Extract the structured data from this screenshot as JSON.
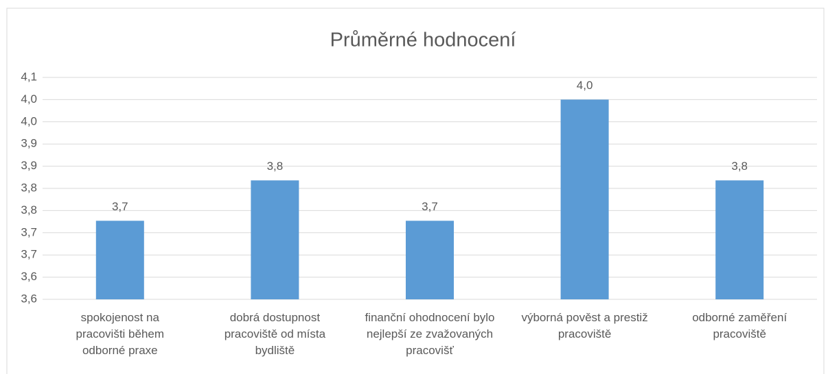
{
  "chart_data": {
    "type": "bar",
    "title": "Průměrné hodnocení",
    "categories": [
      "spokojenost na pracovišti během odborné praxe",
      "dobrá dostupnost pracoviště od místa bydliště",
      "finanční ohodnocení bylo nejlepší ze zvažovaných pracovišť",
      "výborná pověst a prestiž pracoviště",
      "odborné zaměření pracoviště"
    ],
    "values": [
      3.727,
      3.818,
      3.727,
      4.0,
      3.818
    ],
    "value_labels": [
      "3,7",
      "3,8",
      "3,7",
      "4,0",
      "3,8"
    ],
    "color": "#5b9bd5",
    "ylim": [
      3.55,
      4.05
    ],
    "yticks": [
      {
        "value": 3.55,
        "label": "3,6"
      },
      {
        "value": 3.6,
        "label": "3,6"
      },
      {
        "value": 3.65,
        "label": "3,7"
      },
      {
        "value": 3.7,
        "label": "3,7"
      },
      {
        "value": 3.75,
        "label": "3,8"
      },
      {
        "value": 3.8,
        "label": "3,8"
      },
      {
        "value": 3.85,
        "label": "3,9"
      },
      {
        "value": 3.9,
        "label": "3,9"
      },
      {
        "value": 3.95,
        "label": "4,0"
      },
      {
        "value": 4.0,
        "label": "4,0"
      },
      {
        "value": 4.05,
        "label": "4,1"
      }
    ],
    "grid": true
  }
}
